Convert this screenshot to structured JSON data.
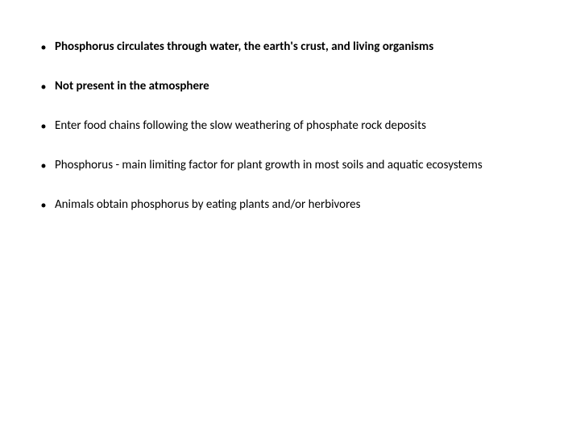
{
  "slide": {
    "background_color": "#ffffff",
    "text_color": "#000000",
    "font_family": "Calibri",
    "font_size_pt": 11,
    "bullet_char": "•",
    "bullets": [
      {
        "text": "Phosphorus circulates through water, the earth's crust, and living organisms",
        "bold": true
      },
      {
        "text": "Not present in the atmosphere",
        "bold": true
      },
      {
        "text": "Enter food chains following the slow weathering of phosphate rock deposits",
        "bold": false
      },
      {
        "text": "Phosphorus - main limiting factor for plant growth in most soils and aquatic ecosystems",
        "bold": false
      },
      {
        "text": "Animals obtain phosphorus by eating plants and/or herbivores",
        "bold": false
      }
    ]
  }
}
